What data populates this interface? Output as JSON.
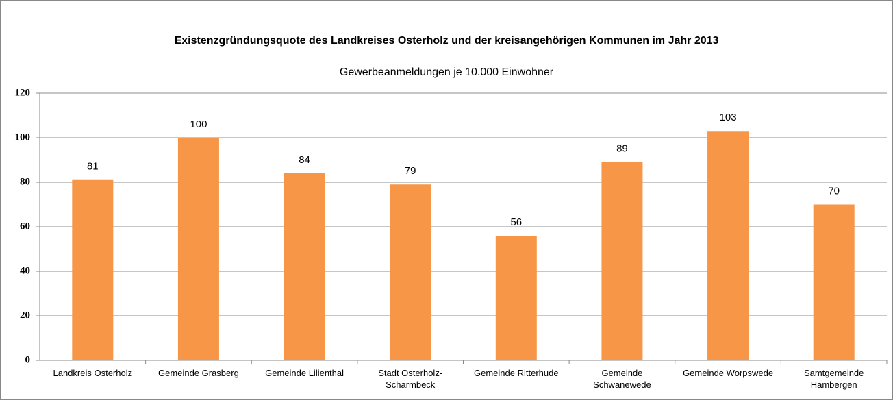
{
  "chart_data": {
    "type": "bar",
    "title": "Existenzgründungsquote des Landkreises Osterholz und der kreisangehörigen Kommunen im Jahr 2013",
    "subtitle": "Gewerbeanmeldungen je 10.000 Einwohner",
    "categories": [
      "Landkreis Osterholz",
      "Gemeinde Grasberg",
      "Gemeinde Lilienthal",
      "Stadt Osterholz-\nScharmbeck",
      "Gemeinde Ritterhude",
      "Gemeinde\nSchwanewede",
      "Gemeinde Worpswede",
      "Samtgemeinde\nHambergen"
    ],
    "values": [
      81,
      100,
      84,
      79,
      56,
      89,
      103,
      70
    ],
    "color": "#f79646",
    "ylim": [
      0,
      120
    ],
    "yticks": [
      0,
      20,
      40,
      60,
      80,
      100,
      120
    ],
    "grid": true
  }
}
